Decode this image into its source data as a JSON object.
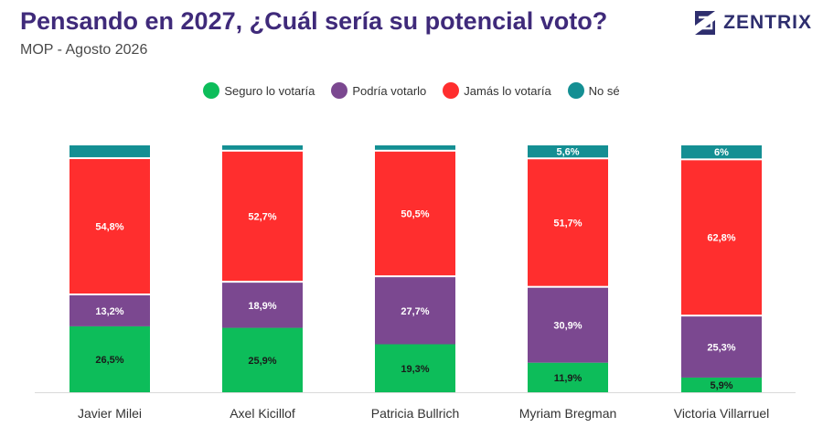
{
  "header": {
    "title": "Pensando en 2027, ¿Cuál sería su potencial voto?",
    "subtitle": "MOP - Agosto 2026",
    "brand": "ZENTRIX"
  },
  "chart_data": {
    "type": "bar",
    "stacked": true,
    "categories": [
      "Javier Milei",
      "Axel Kicillof",
      "Patricia Bullrich",
      "Myriam Bregman",
      "Victoria Villarruel"
    ],
    "series": [
      {
        "name": "Seguro lo votaría",
        "color": "#0dbd5a",
        "values": [
          26.5,
          25.9,
          19.3,
          11.9,
          5.9
        ],
        "labels": [
          "26,5%",
          "25,9%",
          "19,3%",
          "11,9%",
          "5,9%"
        ]
      },
      {
        "name": "Podría votarlo",
        "color": "#7b4890",
        "values": [
          13.2,
          18.9,
          27.7,
          30.9,
          25.3
        ],
        "labels": [
          "13,2%",
          "18,9%",
          "27,7%",
          "30,9%",
          "25,3%"
        ]
      },
      {
        "name": "Jamás lo votaría",
        "color": "#ff2e2e",
        "values": [
          54.8,
          52.7,
          50.5,
          51.7,
          62.8
        ],
        "labels": [
          "54,8%",
          "52,7%",
          "50,5%",
          "51,7%",
          "62,8%"
        ]
      },
      {
        "name": "No sé",
        "color": "#148f93",
        "values": [
          5.5,
          2.5,
          2.5,
          5.6,
          6.0
        ],
        "labels": [
          "",
          "",
          "",
          "5,6%",
          "6%"
        ]
      }
    ],
    "ylim": [
      0,
      100
    ],
    "legend_position": "top-center"
  }
}
